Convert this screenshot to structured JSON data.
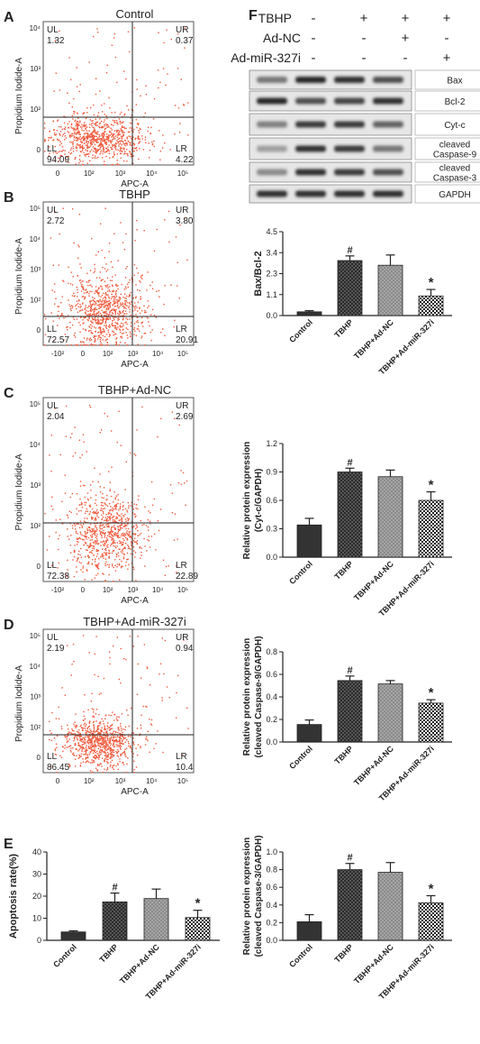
{
  "chart_data": [
    {
      "type": "scatter",
      "panel_letter": "A",
      "title": "Control",
      "xlabel": "APC-A",
      "ylabel": "Propidium Iodide-A",
      "xticks": [
        "0",
        "10²",
        "10³",
        "10⁴",
        "10⁵"
      ],
      "yticks": [
        "0",
        "10²",
        "10³",
        "10⁴"
      ],
      "quadrants": {
        "UL": 1.32,
        "UR": 0.37,
        "LL": 94.09,
        "LR": 4.22
      },
      "quadrant_labels": [
        "UL",
        "UR",
        "LL",
        "LR"
      ],
      "point_color": "#ef5a3c"
    },
    {
      "type": "scatter",
      "panel_letter": "B",
      "title": "TBHP",
      "xlabel": "APC-A",
      "ylabel": "Propidium Iodide-A",
      "xticks": [
        "-10²",
        "0",
        "10²",
        "10³",
        "10⁴",
        "10⁵"
      ],
      "yticks": [
        "0",
        "10²",
        "10³",
        "10⁴",
        "10⁵"
      ],
      "quadrants": {
        "UL": 2.72,
        "UR": 3.8,
        "LL": 72.57,
        "LR": 20.91
      },
      "quadrant_labels": [
        "UL",
        "UR",
        "LL",
        "LR"
      ],
      "point_color": "#ef5a3c"
    },
    {
      "type": "scatter",
      "panel_letter": "C",
      "title": "TBHP+Ad-NC",
      "xlabel": "APC-A",
      "ylabel": "Propidium Iodide-A",
      "xticks": [
        "-10²",
        "0",
        "10²",
        "10³",
        "10⁴",
        "10⁵"
      ],
      "yticks": [
        "0",
        "10²",
        "10³",
        "10⁴",
        "10⁵"
      ],
      "quadrants": {
        "UL": 2.04,
        "UR": 2.69,
        "LL": 72.38,
        "LR": 22.89
      },
      "quadrant_labels": [
        "UL",
        "UR",
        "LL",
        "LR"
      ],
      "point_color": "#ef5a3c"
    },
    {
      "type": "scatter",
      "panel_letter": "D",
      "title": "TBHP+Ad-miR-327i",
      "xlabel": "APC-A",
      "ylabel": "Propidium Iodide-A",
      "xticks": [
        "0",
        "10²",
        "10³",
        "10⁴",
        "10⁵"
      ],
      "yticks": [
        "0",
        "10²",
        "10³",
        "10⁴",
        "10⁵"
      ],
      "quadrants": {
        "UL": 2.19,
        "UR": 0.94,
        "LL": 86.45,
        "LR": 10.4
      },
      "quadrant_labels": [
        "UL",
        "UR",
        "LL",
        "LR"
      ],
      "point_color": "#ef5a3c"
    },
    {
      "type": "bar",
      "panel_letter": "E",
      "ylabel": "Apoptosis rate(%)",
      "categories": [
        "Control",
        "TBHP",
        "TBHP+Ad-NC",
        "TBHP+Ad-miR-327i"
      ],
      "values": [
        3.8,
        17.4,
        18.9,
        10.3
      ],
      "errors": [
        0.5,
        4.0,
        4.3,
        3.3
      ],
      "ylim": [
        0,
        40
      ],
      "yticks": [
        "0",
        "10",
        "20",
        "30",
        "40"
      ],
      "marks": [
        "",
        "#",
        "",
        "*"
      ]
    },
    {
      "type": "bar",
      "ylabel": "Bax/Bcl-2",
      "categories": [
        "Control",
        "TBHP",
        "TBHP+Ad-NC",
        "TBHP+Ad-miR-327i"
      ],
      "values": [
        0.2,
        2.95,
        2.7,
        1.05
      ],
      "errors": [
        0.06,
        0.25,
        0.55,
        0.35
      ],
      "ylim": [
        0,
        4.5
      ],
      "yticks": [
        "0.0",
        "1.1",
        "2.3",
        "3.4",
        "4.5"
      ],
      "marks": [
        "",
        "#",
        "",
        "*"
      ]
    },
    {
      "type": "bar",
      "ylabel": "Relative protein expression\n(Cyt-c/GAPDH)",
      "categories": [
        "Control",
        "TBHP",
        "TBHP+Ad-NC",
        "TBHP+Ad-miR-327i"
      ],
      "values": [
        0.34,
        0.9,
        0.85,
        0.6
      ],
      "errors": [
        0.07,
        0.04,
        0.07,
        0.09
      ],
      "ylim": [
        0,
        1.2
      ],
      "yticks": [
        "0.0",
        "0.3",
        "0.6",
        "0.9",
        "1.2"
      ],
      "marks": [
        "",
        "#",
        "",
        "*"
      ]
    },
    {
      "type": "bar",
      "ylabel": "Relative protein expression\n(cleaved Caspase-9/GAPDH)",
      "categories": [
        "Control",
        "TBHP",
        "TBHP+Ad-NC",
        "TBHP+Ad-miR-327i"
      ],
      "values": [
        0.155,
        0.545,
        0.515,
        0.345
      ],
      "errors": [
        0.04,
        0.04,
        0.03,
        0.03
      ],
      "ylim": [
        0,
        0.8
      ],
      "yticks": [
        "0.0",
        "0.2",
        "0.4",
        "0.6",
        "0.8"
      ],
      "marks": [
        "",
        "#",
        "",
        "*"
      ]
    },
    {
      "type": "bar",
      "ylabel": "Relative protein expression\n(cleaved Caspase-3/GAPDH)",
      "categories": [
        "Control",
        "TBHP",
        "TBHP+Ad-NC",
        "TBHP+Ad-miR-327i"
      ],
      "values": [
        0.21,
        0.8,
        0.77,
        0.425
      ],
      "errors": [
        0.08,
        0.07,
        0.11,
        0.08
      ],
      "ylim": [
        0,
        1.0
      ],
      "yticks": [
        "0.0",
        "0.2",
        "0.4",
        "0.6",
        "0.8",
        "1.0"
      ],
      "marks": [
        "",
        "#",
        "",
        "*"
      ]
    }
  ],
  "western_blot": {
    "panel_letter": "F",
    "conditions": [
      {
        "label": "TBHP",
        "signs": [
          "-",
          "+",
          "+",
          "+"
        ]
      },
      {
        "label": "Ad-NC",
        "signs": [
          "-",
          "-",
          "+",
          "-"
        ]
      },
      {
        "label": "Ad-miR-327i",
        "signs": [
          "-",
          "-",
          "-",
          "+"
        ]
      }
    ],
    "bands": [
      "Bax",
      "Bcl-2",
      "Cyt-c",
      "cleaved\nCaspase-9",
      "cleaved\nCaspase-3",
      "GAPDH"
    ]
  },
  "colors": {
    "bar_dark": "#333333",
    "bar_dots": "#2b2b2b",
    "bar_grey": "#888888",
    "bar_check": "#ffffff"
  }
}
